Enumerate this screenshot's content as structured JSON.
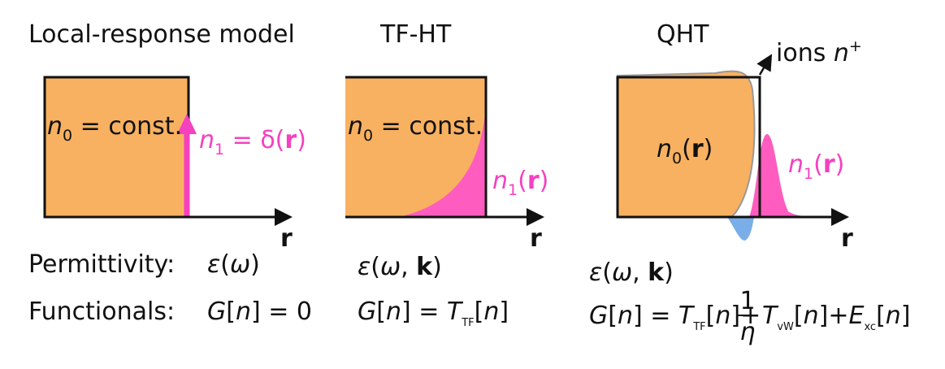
{
  "row_labels": {
    "permittivity": "Permittivity:",
    "functionals": "Functionals:"
  },
  "panels": [
    {
      "title": "Local-response model",
      "axis": "r",
      "n0": [
        "n",
        "0",
        " = const."
      ],
      "n1": [
        "n",
        "1",
        " = δ(",
        "r",
        ")"
      ],
      "permittivity": [
        "ε",
        "(",
        "ω",
        ")"
      ],
      "functional": [
        "G",
        "[",
        "n",
        "] = 0"
      ]
    },
    {
      "title": "TF-HT",
      "axis": "r",
      "n0": [
        "n",
        "0",
        " = const."
      ],
      "n1": [
        "n",
        "1",
        "(",
        "r",
        ")"
      ],
      "permittivity": [
        "ε",
        "(",
        "ω",
        ", ",
        "k",
        ")"
      ],
      "functional": [
        "G",
        "[",
        "n",
        "] = ",
        "T",
        "TF",
        "[",
        "n",
        "]"
      ]
    },
    {
      "title": "QHT",
      "axis": "r",
      "n0": [
        "n",
        "0",
        "(",
        "r",
        ")"
      ],
      "n1": [
        "n",
        "1",
        "(",
        "r",
        ")"
      ],
      "ions": [
        "ions ",
        "n",
        "+"
      ],
      "permittivity": [
        "ε",
        "(",
        "ω",
        ", ",
        "k",
        ")"
      ],
      "functional": [
        "G",
        "[",
        "n",
        "] = ",
        "T",
        "TF",
        "[",
        "n",
        "]+",
        "1",
        "η",
        "T",
        "vW",
        "[",
        "n",
        "]+",
        "E",
        "xc",
        "[",
        "n",
        "]"
      ]
    }
  ]
}
